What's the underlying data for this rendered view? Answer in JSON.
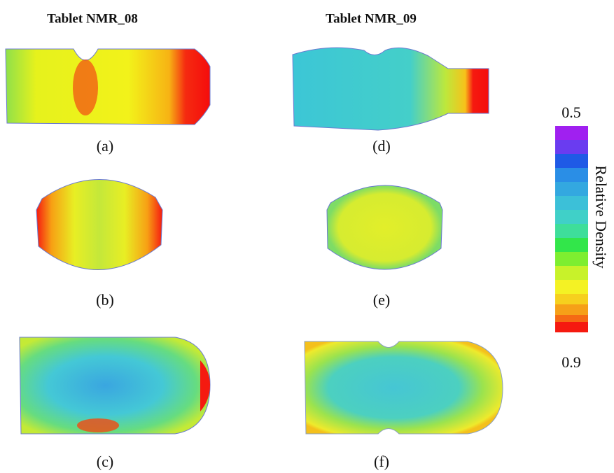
{
  "columns": [
    {
      "title": "Tablet NMR_08",
      "panels": [
        "(a)",
        "(b)",
        "(c)"
      ]
    },
    {
      "title": "Tablet NMR_09",
      "panels": [
        "(d)",
        "(e)",
        "(f)"
      ]
    }
  ],
  "colorbar": {
    "min": 0.5,
    "max": 0.9,
    "label": "Relative Density"
  }
}
